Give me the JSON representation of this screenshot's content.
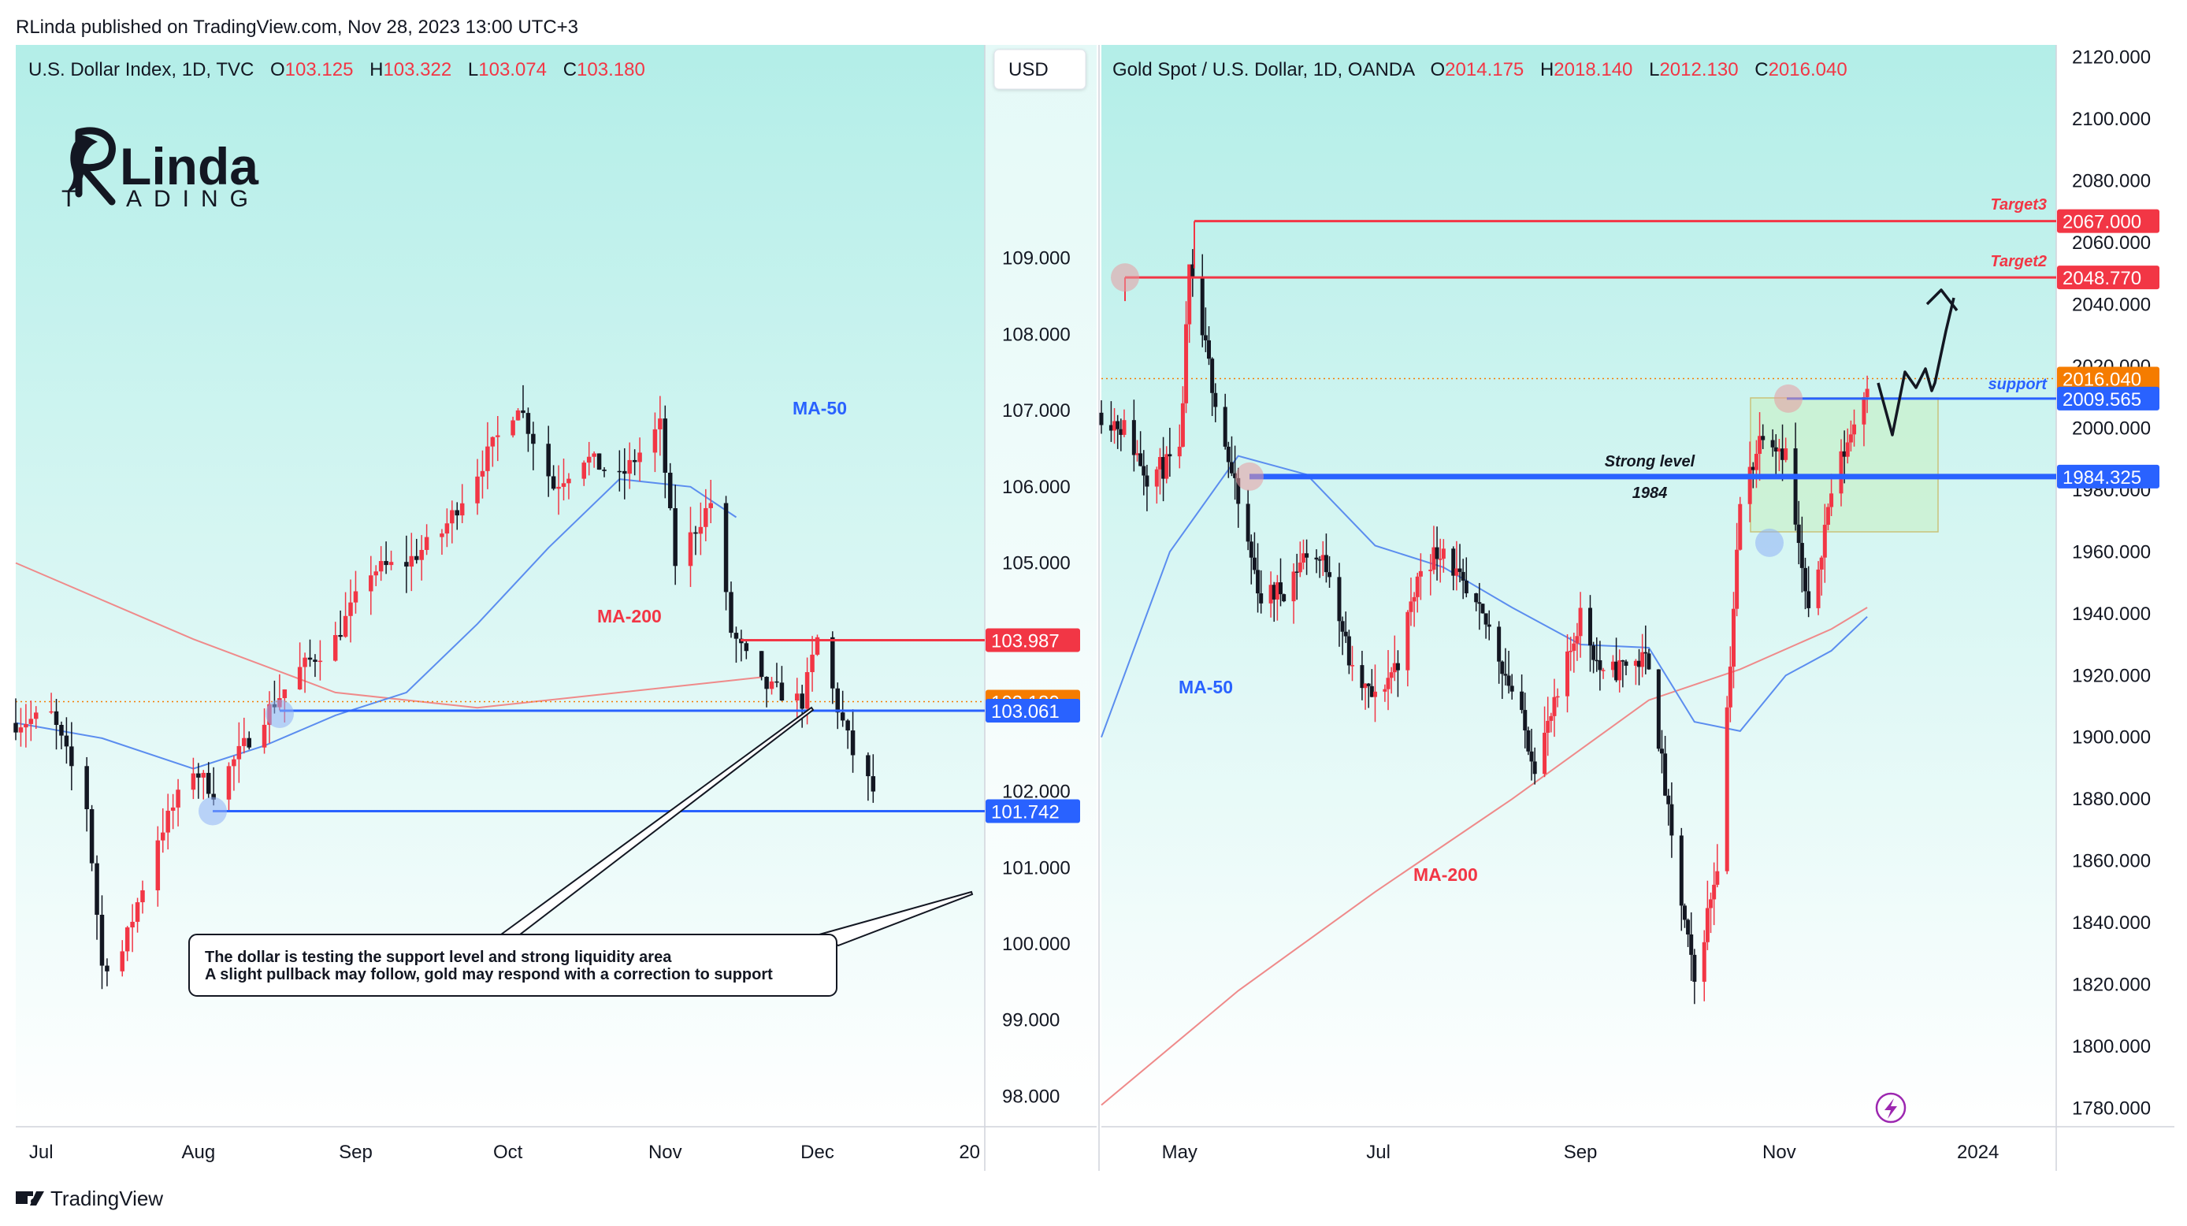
{
  "header": {
    "publisher": "RLinda published on TradingView.com, Nov 28, 2023 13:00 UTC+3"
  },
  "footer": {
    "brand": "TradingView"
  },
  "logo": {
    "name_part": "Linda",
    "sub_left": "T",
    "sub_right": "ADING"
  },
  "colors": {
    "up": "#f23645",
    "down": "#131722",
    "support": "#2962ff",
    "resistance": "#f23645",
    "price_tag": "#f57c00",
    "ma50": "#5b8def",
    "ma200": "#ef8a8a",
    "bg_top": "#b3eee8",
    "bg_bottom": "#ffffff"
  },
  "left_chart": {
    "legend": {
      "symbol": "U.S. Dollar Index, 1D, TVC",
      "o_label": "O",
      "o": "103.125",
      "h_label": "H",
      "h": "103.322",
      "l_label": "L",
      "l": "103.074",
      "c_label": "C",
      "c": "103.180"
    },
    "currency": "USD",
    "ma50_label": "MA-50",
    "ma200_label": "MA-200",
    "price_tags": {
      "resistance": "103.987",
      "current": "103.180",
      "support1": "103.061",
      "support2": "101.742"
    },
    "annotation": {
      "line1": "The dollar is testing the support level and strong liquidity area",
      "line2": "A slight pullback may follow, gold may respond with a correction to support"
    }
  },
  "right_chart": {
    "legend": {
      "symbol": "Gold Spot / U.S. Dollar, 1D, OANDA",
      "o_label": "O",
      "o": "2014.175",
      "h_label": "H",
      "h": "2018.140",
      "l_label": "L",
      "l": "2012.130",
      "c_label": "C",
      "c": "2016.040"
    },
    "ma50_label": "MA-50",
    "ma200_label": "MA-200",
    "level_labels": {
      "target3": "Target3",
      "target2": "Target2",
      "support": "support",
      "strong_level": "Strong level",
      "strong_value": "1984"
    },
    "price_tags": {
      "target3": "2067.000",
      "target2": "2048.770",
      "current": "2016.040",
      "support": "2009.565",
      "strong": "1984.325"
    }
  },
  "chart_data": [
    {
      "type": "line",
      "title": "U.S. Dollar Index, 1D, TVC",
      "xlabel": "",
      "ylabel": "",
      "ylim": [
        97.6,
        111.8
      ],
      "y_ticks": [
        "98.000",
        "99.000",
        "100.000",
        "101.000",
        "102.000",
        "103.000",
        "104.000",
        "105.000",
        "106.000",
        "107.000",
        "108.000",
        "109.000"
      ],
      "x_ticks": [
        "Jul",
        "Aug",
        "Sep",
        "Oct",
        "Nov",
        "Dec",
        "20"
      ],
      "x_range": [
        "2023-06-26",
        "2024-01-03"
      ],
      "series": [
        {
          "name": "U.S. Dollar Index",
          "x": [
            "2023-06-26",
            "2023-07-03",
            "2023-07-10",
            "2023-07-13",
            "2023-07-17",
            "2023-07-24",
            "2023-07-31",
            "2023-08-04",
            "2023-08-07",
            "2023-08-14",
            "2023-08-21",
            "2023-08-28",
            "2023-09-04",
            "2023-09-11",
            "2023-09-18",
            "2023-09-25",
            "2023-10-03",
            "2023-10-10",
            "2023-10-16",
            "2023-10-23",
            "2023-10-31",
            "2023-11-03",
            "2023-11-10",
            "2023-11-14",
            "2023-11-20",
            "2023-11-28",
            "2023-12-01",
            "2023-12-05",
            "2023-12-08",
            "2023-12-12"
          ],
          "values": [
            102.9,
            103.0,
            101.8,
            99.7,
            99.9,
            101.4,
            102.3,
            102.0,
            102.3,
            103.0,
            103.6,
            104.0,
            104.9,
            105.0,
            105.4,
            106.2,
            107.1,
            106.0,
            106.4,
            106.1,
            106.8,
            105.0,
            105.8,
            104.1,
            103.4,
            103.18,
            104.0,
            103.1,
            102.5,
            102.0
          ]
        },
        {
          "name": "MA-50",
          "x": [
            "2023-06-26",
            "2023-07-13",
            "2023-07-31",
            "2023-08-14",
            "2023-08-28",
            "2023-09-11",
            "2023-09-25",
            "2023-10-09",
            "2023-10-23",
            "2023-11-06",
            "2023-11-15"
          ],
          "values": [
            102.9,
            102.7,
            102.3,
            102.6,
            103.0,
            103.3,
            104.2,
            105.2,
            106.1,
            106.0,
            105.6
          ]
        },
        {
          "name": "MA-200",
          "x": [
            "2023-06-26",
            "2023-07-31",
            "2023-08-28",
            "2023-09-25",
            "2023-10-23",
            "2023-11-20"
          ],
          "values": [
            105.0,
            104.0,
            103.3,
            103.1,
            103.3,
            103.5
          ]
        }
      ],
      "levels": [
        103.987,
        103.18,
        103.061,
        101.742
      ]
    },
    {
      "type": "line",
      "title": "Gold Spot / U.S. Dollar, 1D, OANDA",
      "xlabel": "",
      "ylabel": "",
      "ylim": [
        1774,
        2124
      ],
      "y_ticks": [
        "1780.000",
        "1800.000",
        "1820.000",
        "1840.000",
        "1860.000",
        "1880.000",
        "1900.000",
        "1920.000",
        "1940.000",
        "1960.000",
        "1980.000",
        "2000.000",
        "2020.000",
        "2040.000",
        "2060.000",
        "2080.000",
        "2100.000",
        "2120.000"
      ],
      "x_ticks": [
        "May",
        "Jul",
        "Sep",
        "Nov",
        "2024"
      ],
      "x_range": [
        "2023-04-07",
        "2024-01-25"
      ],
      "series": [
        {
          "name": "Gold Spot / U.S. Dollar",
          "x": [
            "2023-04-07",
            "2023-04-14",
            "2023-04-21",
            "2023-05-01",
            "2023-05-04",
            "2023-05-12",
            "2023-05-19",
            "2023-05-26",
            "2023-06-02",
            "2023-06-09",
            "2023-06-16",
            "2023-06-23",
            "2023-06-30",
            "2023-07-07",
            "2023-07-14",
            "2023-07-21",
            "2023-07-28",
            "2023-08-04",
            "2023-08-11",
            "2023-08-18",
            "2023-08-25",
            "2023-09-01",
            "2023-09-08",
            "2023-09-15",
            "2023-09-22",
            "2023-09-29",
            "2023-10-06",
            "2023-10-13",
            "2023-10-20",
            "2023-10-27",
            "2023-11-03",
            "2023-11-10",
            "2023-11-17",
            "2023-11-24",
            "2023-11-28"
          ],
          "values": [
            2005,
            2000,
            1985,
            1990,
            2050,
            2010,
            1975,
            1945,
            1948,
            1960,
            1955,
            1920,
            1912,
            1925,
            1955,
            1962,
            1945,
            1935,
            1915,
            1892,
            1912,
            1940,
            1919,
            1924,
            1925,
            1866,
            1820,
            1860,
            1975,
            2000,
            1992,
            1938,
            1980,
            2002,
            2016.04
          ]
        },
        {
          "name": "MA-50",
          "x": [
            "2023-04-07",
            "2023-04-28",
            "2023-05-19",
            "2023-06-09",
            "2023-06-30",
            "2023-07-21",
            "2023-08-11",
            "2023-09-01",
            "2023-09-22",
            "2023-10-06",
            "2023-10-20",
            "2023-11-03",
            "2023-11-17",
            "2023-11-28"
          ],
          "values": [
            1900,
            1960,
            1991,
            1985,
            1962,
            1955,
            1942,
            1930,
            1929,
            1905,
            1902,
            1920,
            1928,
            1939
          ]
        },
        {
          "name": "MA-200",
          "x": [
            "2023-04-07",
            "2023-05-19",
            "2023-06-30",
            "2023-08-11",
            "2023-09-22",
            "2023-10-20",
            "2023-11-17",
            "2023-11-28"
          ],
          "values": [
            1781,
            1818,
            1850,
            1880,
            1912,
            1922,
            1935,
            1942
          ]
        }
      ],
      "levels": [
        2067.0,
        2048.77,
        2016.04,
        2009.565,
        1984.325
      ]
    }
  ]
}
